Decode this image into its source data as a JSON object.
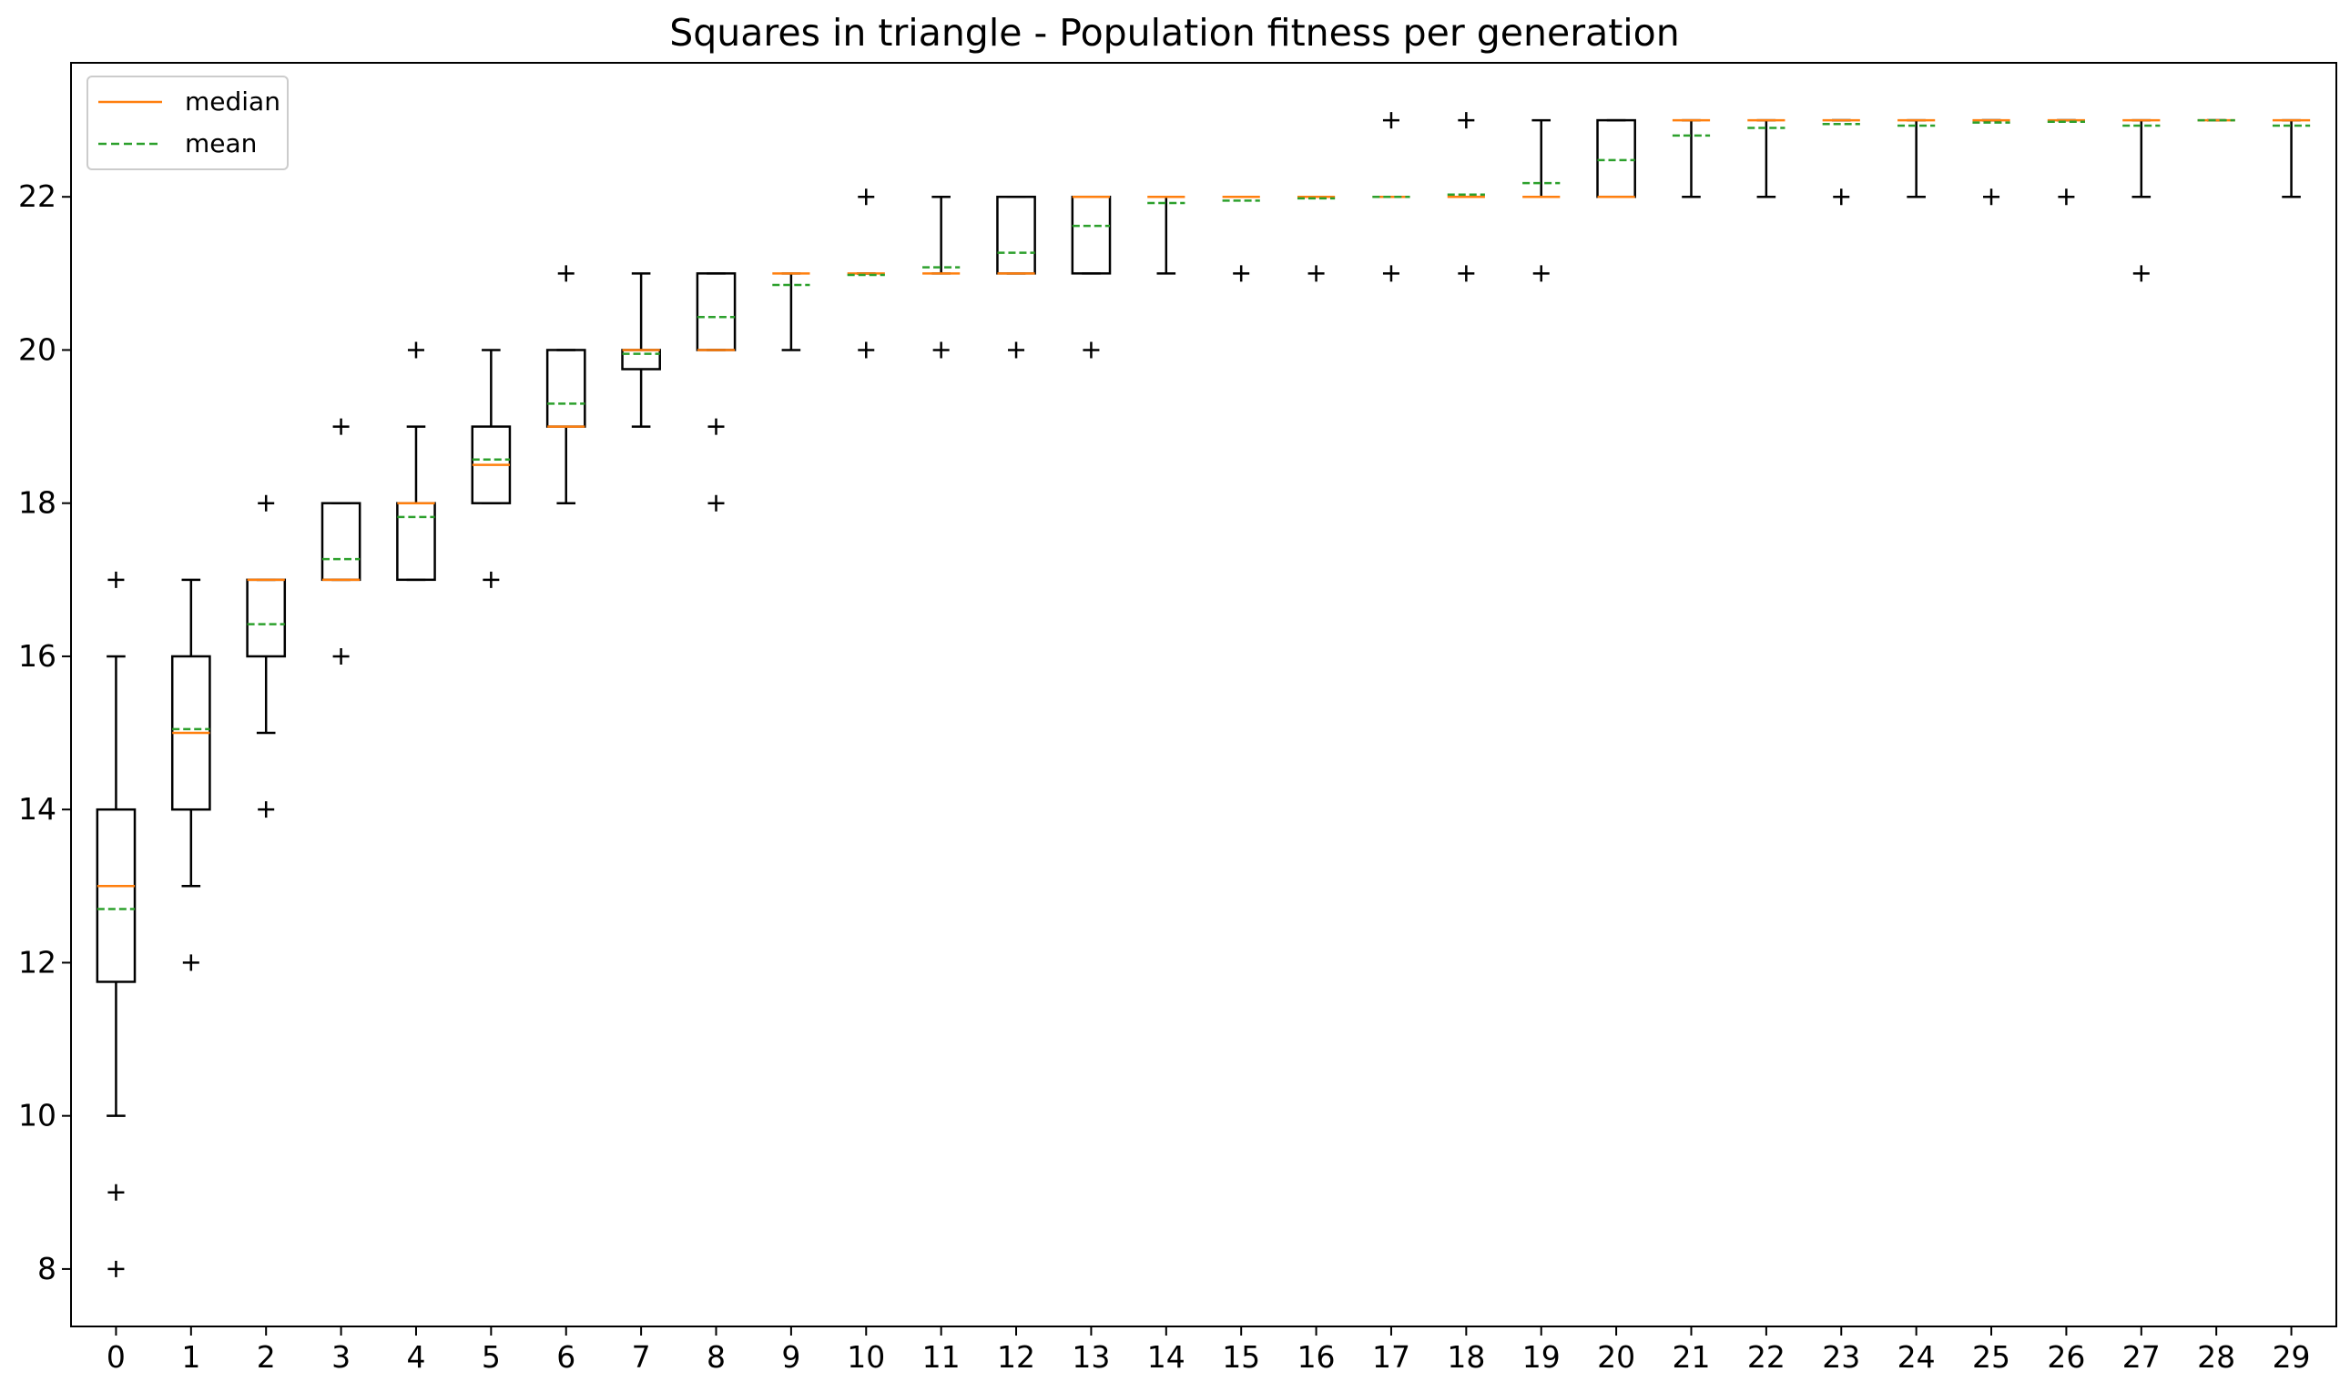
{
  "chart_data": {
    "type": "box",
    "title": "Squares in triangle - Population fitness per generation",
    "xlabel": "",
    "ylabel": "",
    "ylim": [
      7.25,
      23.75
    ],
    "yticks": [
      8,
      10,
      12,
      14,
      16,
      18,
      20,
      22
    ],
    "grid": false,
    "legend_position": "top-left",
    "legend": [
      {
        "label": "median",
        "style": "solid",
        "color": "#ff7f0e"
      },
      {
        "label": "mean",
        "style": "dashed",
        "color": "#2ca02c"
      }
    ],
    "colors": {
      "median": "#ff7f0e",
      "mean": "#2ca02c",
      "box": "#000000"
    },
    "categories": [
      "0",
      "1",
      "2",
      "3",
      "4",
      "5",
      "6",
      "7",
      "8",
      "9",
      "10",
      "11",
      "12",
      "13",
      "14",
      "15",
      "16",
      "17",
      "18",
      "19",
      "20",
      "21",
      "22",
      "23",
      "24",
      "25",
      "26",
      "27",
      "28",
      "29"
    ],
    "boxes": [
      {
        "whislo": 10,
        "q1": 11.75,
        "med": 13,
        "q3": 14,
        "whishi": 16,
        "mean": 12.7,
        "fliers": [
          17,
          9,
          8
        ]
      },
      {
        "whislo": 13,
        "q1": 14,
        "med": 15,
        "q3": 16,
        "whishi": 17,
        "mean": 15.05,
        "fliers": [
          12
        ]
      },
      {
        "whislo": 15,
        "q1": 16,
        "med": 17,
        "q3": 17,
        "whishi": 17,
        "mean": 16.42,
        "fliers": [
          18,
          14
        ]
      },
      {
        "whislo": 17,
        "q1": 17,
        "med": 17,
        "q3": 18,
        "whishi": 18,
        "mean": 17.27,
        "fliers": [
          19,
          16
        ]
      },
      {
        "whislo": 17,
        "q1": 17,
        "med": 18,
        "q3": 18,
        "whishi": 19,
        "mean": 17.82,
        "fliers": [
          20
        ]
      },
      {
        "whislo": 18,
        "q1": 18,
        "med": 18.5,
        "q3": 19,
        "whishi": 20,
        "mean": 18.57,
        "fliers": [
          17
        ]
      },
      {
        "whislo": 18,
        "q1": 19,
        "med": 19,
        "q3": 20,
        "whishi": 20,
        "mean": 19.3,
        "fliers": [
          21
        ]
      },
      {
        "whislo": 19,
        "q1": 19.75,
        "med": 20,
        "q3": 20,
        "whishi": 21,
        "mean": 19.95,
        "fliers": []
      },
      {
        "whislo": 20,
        "q1": 20,
        "med": 20,
        "q3": 21,
        "whishi": 21,
        "mean": 20.43,
        "fliers": [
          19,
          18
        ]
      },
      {
        "whislo": 20,
        "q1": 21,
        "med": 21,
        "q3": 21,
        "whishi": 21,
        "mean": 20.85,
        "fliers": []
      },
      {
        "whislo": 21,
        "q1": 21,
        "med": 21,
        "q3": 21,
        "whishi": 21,
        "mean": 20.98,
        "fliers": [
          22,
          20
        ]
      },
      {
        "whislo": 21,
        "q1": 21,
        "med": 21,
        "q3": 21,
        "whishi": 22,
        "mean": 21.08,
        "fliers": [
          20
        ]
      },
      {
        "whislo": 21,
        "q1": 21,
        "med": 21,
        "q3": 22,
        "whishi": 22,
        "mean": 21.27,
        "fliers": [
          20
        ]
      },
      {
        "whislo": 21,
        "q1": 21,
        "med": 22,
        "q3": 22,
        "whishi": 22,
        "mean": 21.62,
        "fliers": [
          20
        ]
      },
      {
        "whislo": 21,
        "q1": 22,
        "med": 22,
        "q3": 22,
        "whishi": 22,
        "mean": 21.92,
        "fliers": []
      },
      {
        "whislo": 22,
        "q1": 22,
        "med": 22,
        "q3": 22,
        "whishi": 22,
        "mean": 21.95,
        "fliers": [
          21
        ]
      },
      {
        "whislo": 22,
        "q1": 22,
        "med": 22,
        "q3": 22,
        "whishi": 22,
        "mean": 21.98,
        "fliers": [
          21
        ]
      },
      {
        "whislo": 22,
        "q1": 22,
        "med": 22,
        "q3": 22,
        "whishi": 22,
        "mean": 22.0,
        "fliers": [
          23,
          21
        ]
      },
      {
        "whislo": 22,
        "q1": 22,
        "med": 22,
        "q3": 22,
        "whishi": 22,
        "mean": 22.03,
        "fliers": [
          23,
          21
        ]
      },
      {
        "whislo": 22,
        "q1": 22,
        "med": 22,
        "q3": 22,
        "whishi": 23,
        "mean": 22.18,
        "fliers": [
          21
        ]
      },
      {
        "whislo": 22,
        "q1": 22,
        "med": 22,
        "q3": 23,
        "whishi": 23,
        "mean": 22.48,
        "fliers": []
      },
      {
        "whislo": 22,
        "q1": 23,
        "med": 23,
        "q3": 23,
        "whishi": 23,
        "mean": 22.8,
        "fliers": []
      },
      {
        "whislo": 22,
        "q1": 23,
        "med": 23,
        "q3": 23,
        "whishi": 23,
        "mean": 22.9,
        "fliers": []
      },
      {
        "whislo": 23,
        "q1": 23,
        "med": 23,
        "q3": 23,
        "whishi": 23,
        "mean": 22.95,
        "fliers": [
          22
        ]
      },
      {
        "whislo": 22,
        "q1": 23,
        "med": 23,
        "q3": 23,
        "whishi": 23,
        "mean": 22.93,
        "fliers": []
      },
      {
        "whislo": 23,
        "q1": 23,
        "med": 23,
        "q3": 23,
        "whishi": 23,
        "mean": 22.97,
        "fliers": [
          22
        ]
      },
      {
        "whislo": 23,
        "q1": 23,
        "med": 23,
        "q3": 23,
        "whishi": 23,
        "mean": 22.98,
        "fliers": [
          22
        ]
      },
      {
        "whislo": 22,
        "q1": 23,
        "med": 23,
        "q3": 23,
        "whishi": 23,
        "mean": 22.93,
        "fliers": [
          21
        ]
      },
      {
        "whislo": 23,
        "q1": 23,
        "med": 23,
        "q3": 23,
        "whishi": 23,
        "mean": 23.0,
        "fliers": []
      },
      {
        "whislo": 22,
        "q1": 23,
        "med": 23,
        "q3": 23,
        "whishi": 23,
        "mean": 22.93,
        "fliers": []
      }
    ]
  }
}
